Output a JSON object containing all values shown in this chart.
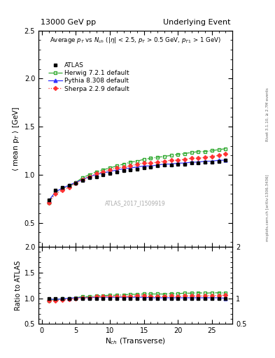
{
  "title_left": "13000 GeV pp",
  "title_right": "Underlying Event",
  "right_label_top": "Rivet 3.1.10, ≥ 2.7M events",
  "right_label_bottom": "mcplots.cern.ch [arXiv:1306.3436]",
  "watermark": "ATLAS_2017_I1509919",
  "xlabel": "N$_{ch}$ (Transverse)",
  "ylabel_main": "⟨ mean p$_{T}$ ⟩ [GeV]",
  "ylabel_ratio": "Ratio to ATLAS",
  "ylim_main": [
    0.25,
    2.5
  ],
  "ylim_ratio": [
    0.5,
    2.0
  ],
  "xlim": [
    -0.5,
    28
  ],
  "yticks_main": [
    0.5,
    1.0,
    1.5,
    2.0,
    2.5
  ],
  "yticks_ratio": [
    0.5,
    1.0,
    1.5,
    2.0
  ],
  "xticks": [
    0,
    5,
    10,
    15,
    20,
    25
  ],
  "atlas_x": [
    1,
    2,
    3,
    4,
    5,
    6,
    7,
    8,
    9,
    10,
    11,
    12,
    13,
    14,
    15,
    16,
    17,
    18,
    19,
    20,
    21,
    22,
    23,
    24,
    25,
    26,
    27
  ],
  "atlas_y": [
    0.74,
    0.84,
    0.87,
    0.89,
    0.91,
    0.94,
    0.97,
    0.98,
    1.0,
    1.01,
    1.03,
    1.04,
    1.05,
    1.06,
    1.07,
    1.08,
    1.09,
    1.1,
    1.1,
    1.11,
    1.11,
    1.12,
    1.12,
    1.13,
    1.13,
    1.14,
    1.15
  ],
  "atlas_yerr": [
    0.01,
    0.01,
    0.01,
    0.01,
    0.01,
    0.01,
    0.01,
    0.01,
    0.01,
    0.01,
    0.01,
    0.01,
    0.01,
    0.01,
    0.01,
    0.01,
    0.01,
    0.01,
    0.01,
    0.01,
    0.01,
    0.01,
    0.01,
    0.01,
    0.01,
    0.01,
    0.01
  ],
  "herwig_x": [
    1,
    2,
    3,
    4,
    5,
    6,
    7,
    8,
    9,
    10,
    11,
    12,
    13,
    14,
    15,
    16,
    17,
    18,
    19,
    20,
    21,
    22,
    23,
    24,
    25,
    26,
    27
  ],
  "herwig_y": [
    0.71,
    0.82,
    0.86,
    0.88,
    0.92,
    0.97,
    1.0,
    1.03,
    1.05,
    1.07,
    1.09,
    1.11,
    1.13,
    1.14,
    1.16,
    1.17,
    1.18,
    1.19,
    1.2,
    1.21,
    1.22,
    1.23,
    1.24,
    1.24,
    1.25,
    1.26,
    1.27
  ],
  "pythia_x": [
    1,
    2,
    3,
    4,
    5,
    6,
    7,
    8,
    9,
    10,
    11,
    12,
    13,
    14,
    15,
    16,
    17,
    18,
    19,
    20,
    21,
    22,
    23,
    24,
    25,
    26,
    27
  ],
  "pythia_y": [
    0.73,
    0.82,
    0.86,
    0.89,
    0.92,
    0.95,
    0.98,
    1.0,
    1.02,
    1.03,
    1.05,
    1.06,
    1.07,
    1.08,
    1.09,
    1.09,
    1.1,
    1.11,
    1.11,
    1.12,
    1.12,
    1.13,
    1.13,
    1.14,
    1.14,
    1.15,
    1.15
  ],
  "sherpa_x": [
    1,
    2,
    3,
    4,
    5,
    6,
    7,
    8,
    9,
    10,
    11,
    12,
    13,
    14,
    15,
    16,
    17,
    18,
    19,
    20,
    21,
    22,
    23,
    24,
    25,
    26,
    27
  ],
  "sherpa_y": [
    0.71,
    0.8,
    0.84,
    0.87,
    0.91,
    0.95,
    0.98,
    1.01,
    1.03,
    1.05,
    1.07,
    1.08,
    1.09,
    1.11,
    1.12,
    1.12,
    1.13,
    1.14,
    1.15,
    1.15,
    1.16,
    1.17,
    1.17,
    1.18,
    1.19,
    1.2,
    1.22
  ],
  "atlas_color": "#000000",
  "herwig_color": "#33aa33",
  "pythia_color": "#3333ff",
  "sherpa_color": "#ff3333",
  "legend_labels": [
    "ATLAS",
    "Herwig 7.2.1 default",
    "Pythia 8.308 default",
    "Sherpa 2.2.9 default"
  ],
  "background_color": "#ffffff"
}
